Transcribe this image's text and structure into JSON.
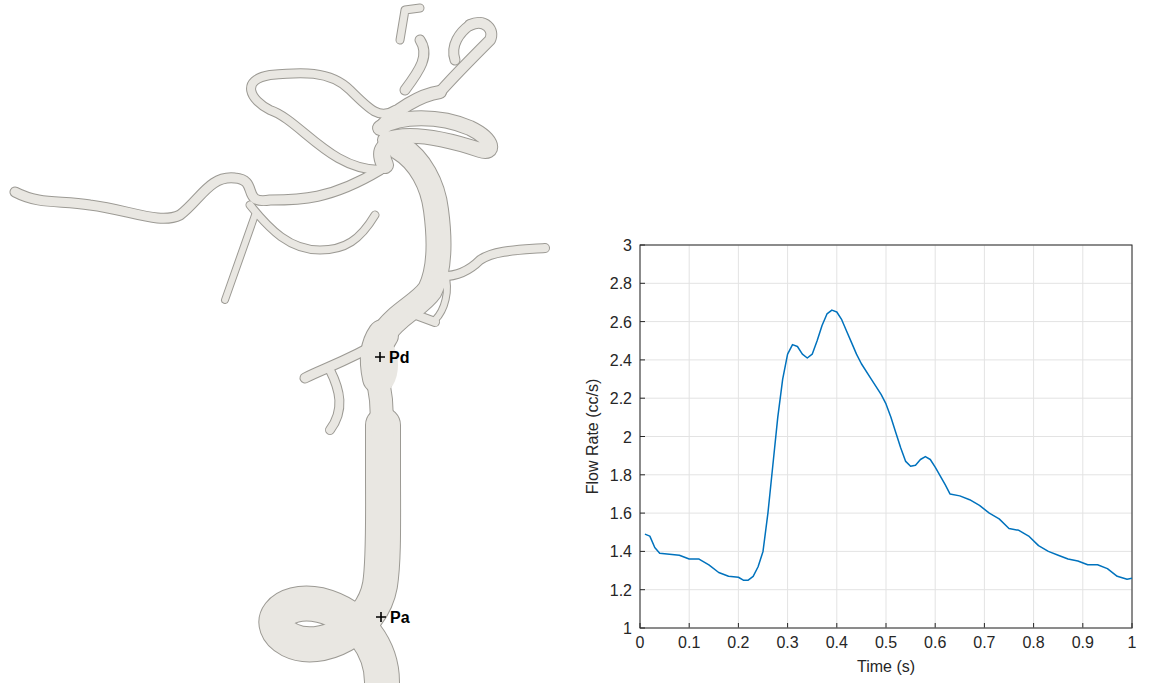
{
  "chart_data": {
    "type": "line",
    "x_label": "Time (s)",
    "y_label": "Flow Rate (cc/s)",
    "color": "#0072bd",
    "grid": true,
    "xlim": [
      0,
      1
    ],
    "ylim": [
      1,
      3
    ],
    "xticks": [
      0,
      0.1,
      0.2,
      0.3,
      0.4,
      0.5,
      0.6,
      0.7,
      0.8,
      0.9,
      1
    ],
    "yticks": [
      1,
      1.2,
      1.4,
      1.6,
      1.8,
      2,
      2.2,
      2.4,
      2.6,
      2.8,
      3
    ],
    "x": [
      0.01,
      0.02,
      0.03,
      0.04,
      0.06,
      0.08,
      0.1,
      0.12,
      0.14,
      0.16,
      0.18,
      0.2,
      0.21,
      0.22,
      0.23,
      0.24,
      0.25,
      0.26,
      0.27,
      0.28,
      0.29,
      0.3,
      0.31,
      0.32,
      0.33,
      0.34,
      0.35,
      0.36,
      0.37,
      0.38,
      0.39,
      0.4,
      0.41,
      0.42,
      0.43,
      0.44,
      0.45,
      0.47,
      0.49,
      0.5,
      0.51,
      0.52,
      0.53,
      0.54,
      0.55,
      0.56,
      0.57,
      0.58,
      0.59,
      0.6,
      0.62,
      0.63,
      0.65,
      0.67,
      0.69,
      0.71,
      0.73,
      0.75,
      0.77,
      0.79,
      0.81,
      0.83,
      0.85,
      0.87,
      0.89,
      0.91,
      0.93,
      0.95,
      0.97,
      0.99,
      1.0
    ],
    "values": [
      1.49,
      1.48,
      1.42,
      1.39,
      1.385,
      1.38,
      1.36,
      1.36,
      1.33,
      1.29,
      1.27,
      1.265,
      1.25,
      1.25,
      1.27,
      1.32,
      1.4,
      1.6,
      1.85,
      2.1,
      2.3,
      2.43,
      2.48,
      2.47,
      2.43,
      2.41,
      2.43,
      2.5,
      2.58,
      2.64,
      2.66,
      2.65,
      2.61,
      2.55,
      2.49,
      2.43,
      2.38,
      2.3,
      2.22,
      2.17,
      2.1,
      2.02,
      1.94,
      1.87,
      1.845,
      1.85,
      1.88,
      1.895,
      1.88,
      1.84,
      1.75,
      1.7,
      1.69,
      1.67,
      1.64,
      1.6,
      1.57,
      1.52,
      1.51,
      1.48,
      1.43,
      1.4,
      1.38,
      1.36,
      1.35,
      1.33,
      1.33,
      1.31,
      1.27,
      1.255,
      1.26
    ]
  },
  "illustration": {
    "labels": [
      "Pd",
      "Pa"
    ]
  }
}
